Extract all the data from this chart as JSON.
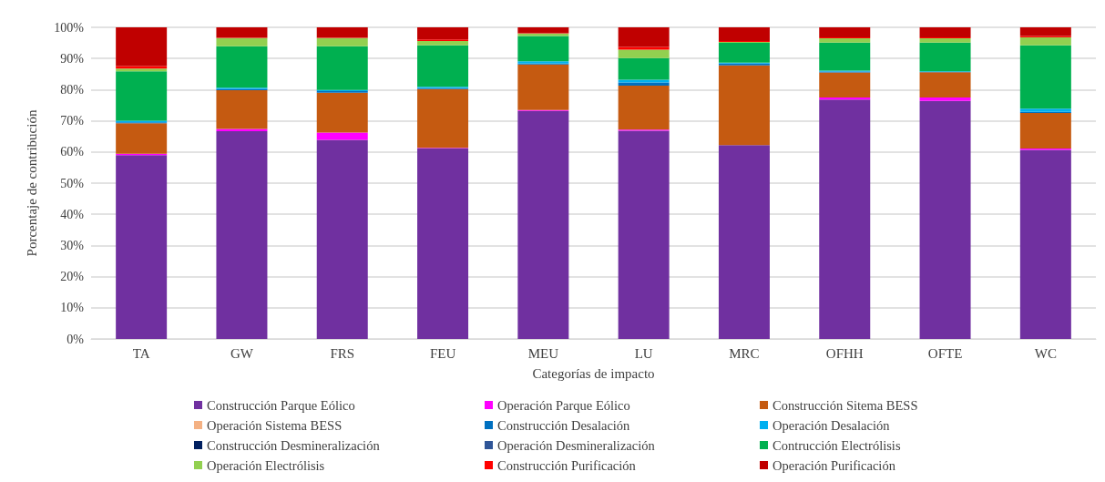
{
  "chart_data": {
    "type": "bar",
    "stacked": true,
    "xlabel": "Categorías de impacto",
    "ylabel": "Porcentaje de contribución",
    "categories": [
      "TA",
      "GW",
      "FRS",
      "FEU",
      "MEU",
      "LU",
      "MRC",
      "OFHH",
      "OFTE",
      "WC"
    ],
    "ylim": [
      0,
      100
    ],
    "yticks": [
      {
        "value": 0,
        "label": "0%"
      },
      {
        "value": 10,
        "label": "10%"
      },
      {
        "value": 20,
        "label": "20%"
      },
      {
        "value": 30,
        "label": "30%"
      },
      {
        "value": 40,
        "label": "40%"
      },
      {
        "value": 50,
        "label": "50%"
      },
      {
        "value": 60,
        "label": "60%"
      },
      {
        "value": 70,
        "label": "70%"
      },
      {
        "value": 80,
        "label": "80%"
      },
      {
        "value": 90,
        "label": "90%"
      },
      {
        "value": 100,
        "label": "100%"
      }
    ],
    "grid": "y",
    "legend": "bottom",
    "series": [
      {
        "name": "Construcción Parque Eólico",
        "color": "#7030a0",
        "values": [
          59,
          66.7,
          63.9,
          61.2,
          73.2,
          66.8,
          62.2,
          76.8,
          76.4,
          60.7
        ]
      },
      {
        "name": "Operación Parque Eólico",
        "color": "#ff00ff",
        "values": [
          0.4,
          0.7,
          2.3,
          0.1,
          0.3,
          0.4,
          0,
          0.7,
          1.1,
          0.4
        ]
      },
      {
        "name": "Construcción Sitema BESS",
        "color": "#c55a11",
        "values": [
          9.8,
          12.4,
          12.8,
          18.9,
          14.6,
          14.1,
          25.6,
          8.0,
          8.1,
          11.4
        ]
      },
      {
        "name": "Operación Sistema BESS",
        "color": "#f4b183",
        "values": [
          0,
          0,
          0,
          0,
          0,
          0,
          0,
          0,
          0,
          0
        ]
      },
      {
        "name": "Construcción Desalación",
        "color": "#0070c0",
        "values": [
          0.3,
          0.4,
          0.5,
          0.3,
          0.3,
          1.0,
          0.6,
          0.3,
          0.1,
          0.4
        ]
      },
      {
        "name": "Operación Desalación",
        "color": "#00b0f0",
        "values": [
          0.5,
          0.4,
          0.4,
          0.4,
          0.7,
          0.9,
          0.3,
          0.3,
          0.2,
          1.0
        ]
      },
      {
        "name": "Construcción Desmineralización",
        "color": "#002060",
        "values": [
          0,
          0,
          0,
          0,
          0,
          0,
          0,
          0,
          0,
          0
        ]
      },
      {
        "name": "Operación Desmineralización",
        "color": "#2f5597",
        "values": [
          0,
          0,
          0,
          0,
          0,
          0,
          0,
          0,
          0,
          0
        ]
      },
      {
        "name": "Contrucción Electrólisis",
        "color": "#00b050",
        "values": [
          15.9,
          13.3,
          14.0,
          13.3,
          8.1,
          6.9,
          6.3,
          9.0,
          9.2,
          20.3
        ]
      },
      {
        "name": "Operación Electrólisis",
        "color": "#92d050",
        "values": [
          0.9,
          2.7,
          2.7,
          1.4,
          0.8,
          2.7,
          0.3,
          1.4,
          1.4,
          2.6
        ]
      },
      {
        "name": "Construcción Purificación",
        "color": "#ff0000",
        "values": [
          0.8,
          0.1,
          0.1,
          0.5,
          0.2,
          0.9,
          0.3,
          0.3,
          0.3,
          0.4
        ]
      },
      {
        "name": "Operación Purificación",
        "color": "#c00000",
        "values": [
          12.4,
          3.3,
          3.3,
          3.9,
          1.8,
          6.3,
          4.4,
          3.2,
          3.2,
          2.8
        ]
      }
    ]
  }
}
